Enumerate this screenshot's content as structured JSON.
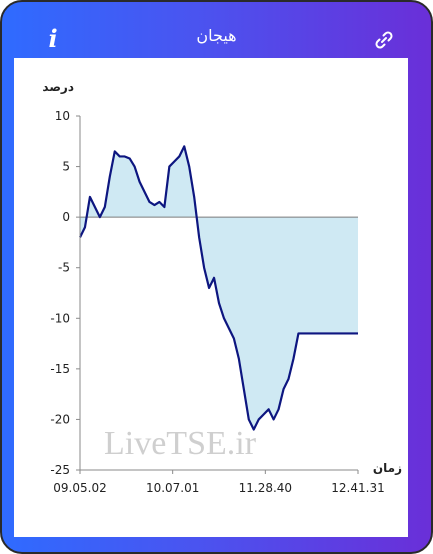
{
  "header": {
    "title": "هیجان",
    "info_label": "i",
    "link_icon": "link-icon"
  },
  "colors": {
    "gradient_start": "#2f6bff",
    "gradient_end": "#6a2fd8",
    "line": "#0d1680",
    "fill": "#cfe9f3"
  },
  "watermark": "LiveTSE.ir",
  "chart_data": {
    "type": "area",
    "ylabel": "درصد",
    "xlabel": "زمان",
    "ylim": [
      -25,
      10
    ],
    "yticks": [
      "10",
      "5",
      "0",
      "-5",
      "-10",
      "-15",
      "-20",
      "-25"
    ],
    "xticks": [
      "09.05.02",
      "10.07.01",
      "11.28.40",
      "12.41.31"
    ],
    "x_index": [
      0,
      5,
      10,
      15,
      20,
      25,
      30,
      35,
      40,
      45,
      50,
      55,
      60,
      65,
      70,
      75,
      80,
      85,
      90,
      95,
      100,
      105,
      110,
      115,
      120,
      125,
      130,
      135,
      140,
      145,
      150,
      155,
      160,
      165,
      170,
      175,
      180,
      185,
      190,
      195,
      200,
      205,
      210,
      215,
      220,
      225,
      230,
      235,
      240,
      245,
      250,
      255,
      260,
      265,
      270,
      275,
      280
    ],
    "values": [
      -2,
      -1,
      2,
      1,
      0,
      1,
      4,
      6.5,
      6,
      6,
      5.8,
      5,
      3.5,
      2.5,
      1.5,
      1.2,
      1.5,
      1,
      5,
      5.5,
      6,
      7,
      5,
      2,
      -2,
      -5,
      -7,
      -6,
      -8.5,
      -10,
      -11,
      -12,
      -14,
      -17,
      -20,
      -21,
      -20,
      -19.5,
      -19,
      -20,
      -19,
      -17,
      -16,
      -14,
      -11.5,
      -11.5,
      -11.5,
      -11.5,
      -11.5,
      -11.5,
      -11.5,
      -11.5,
      -11.5,
      -11.5,
      -11.5,
      -11.5,
      -11.5
    ],
    "grid": false
  }
}
